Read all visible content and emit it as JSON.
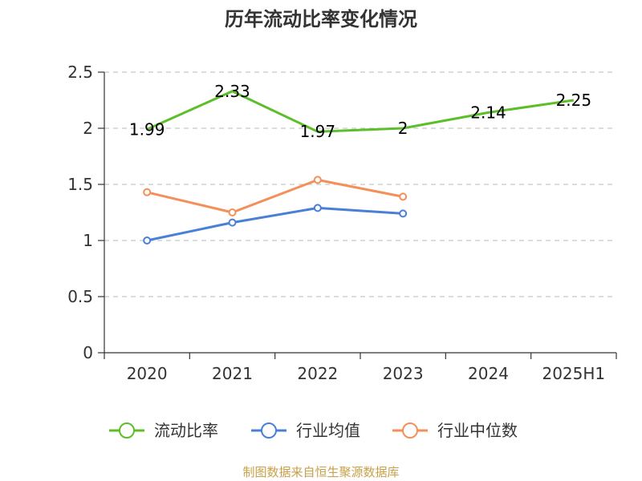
{
  "chart_data": {
    "type": "line",
    "title": "历年流动比率变化情况",
    "categories": [
      "2020",
      "2021",
      "2022",
      "2023",
      "2024",
      "2025H1"
    ],
    "ylim": [
      0,
      2.5
    ],
    "yticks": [
      "0",
      "0.5",
      "1",
      "1.5",
      "2",
      "2.5"
    ],
    "grid": true,
    "legend_position": "bottom",
    "series": [
      {
        "name": "流动比率",
        "color": "#5cbf2a",
        "values": [
          1.99,
          2.33,
          1.97,
          2.0,
          2.14,
          2.25
        ],
        "labels": [
          "1.99",
          "2.33",
          "1.97",
          "2",
          "2.14",
          "2.25"
        ],
        "show_labels": true,
        "markers": false
      },
      {
        "name": "行业均值",
        "color": "#4a7fd8",
        "values": [
          1.0,
          1.16,
          1.29,
          1.24,
          null,
          null
        ],
        "show_labels": false,
        "markers": true
      },
      {
        "name": "行业中位数",
        "color": "#f58f5a",
        "values": [
          1.43,
          1.25,
          1.54,
          1.39,
          null,
          null
        ],
        "show_labels": false,
        "markers": true
      }
    ]
  },
  "footer": {
    "source": "制图数据来自恒生聚源数据库"
  }
}
